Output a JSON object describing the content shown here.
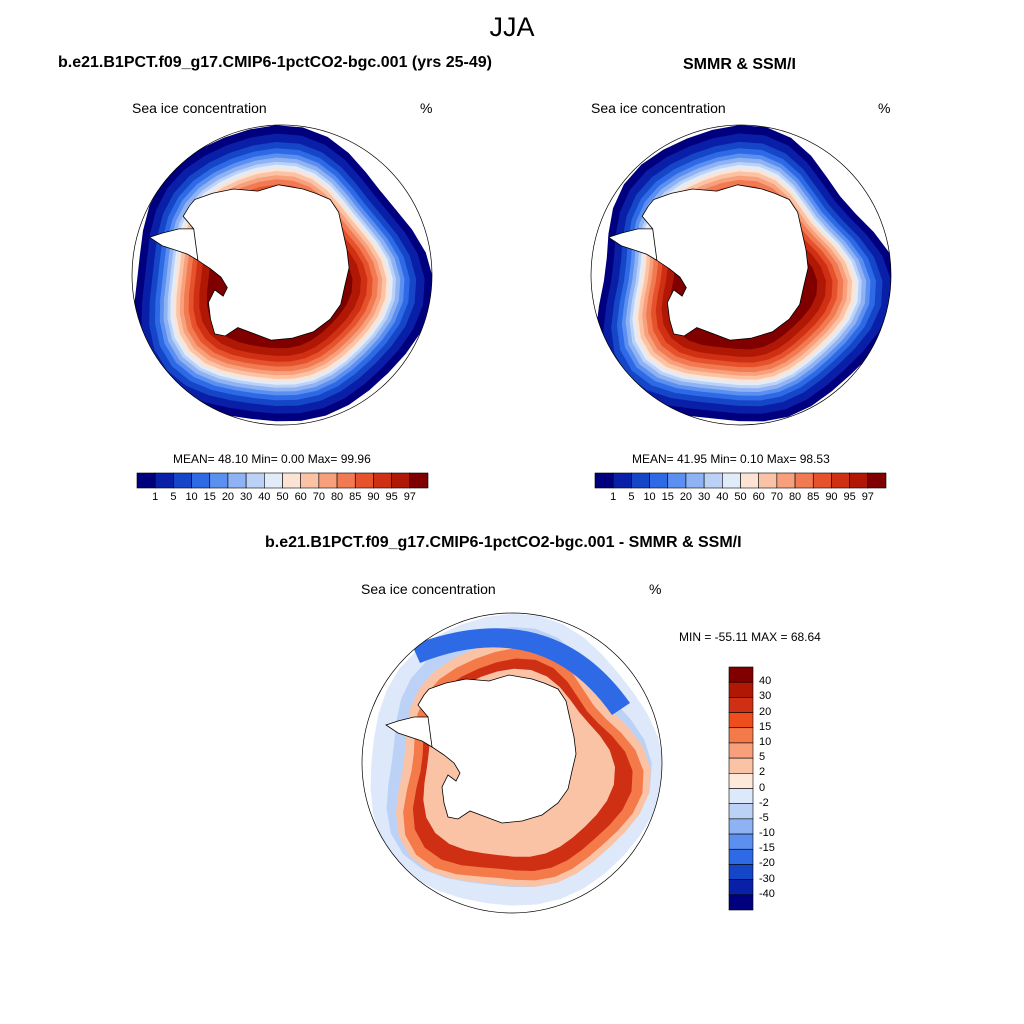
{
  "figure": {
    "season": "JJA",
    "panels": {
      "model": {
        "title": "b.e21.B1PCT.f09_g17.CMIP6-1pctCO2-bgc.001 (yrs 25-49)",
        "label": "Sea ice concentration",
        "units": "%",
        "stats": "MEAN=  48.10  Min=   0.00  Max=  99.96"
      },
      "obs": {
        "title": "SMMR & SSM/I",
        "label": "Sea ice concentration",
        "units": "%",
        "stats": "MEAN=  41.95  Min=   0.10  Max=  98.53"
      },
      "diff": {
        "title": "b.e21.B1PCT.f09_g17.CMIP6-1pctCO2-bgc.001 - SMMR & SSM/I",
        "label": "Sea ice concentration",
        "units": "%",
        "stats": "MIN = -55.11 MAX =  68.64"
      }
    }
  },
  "chart_data": [
    {
      "type": "heatmap",
      "title": "b.e21.B1PCT.f09_g17.CMIP6-1pctCO2-bgc.001 (yrs 25-49)",
      "variable": "Sea ice concentration",
      "units": "%",
      "mean": 48.1,
      "min": 0.0,
      "max": 99.96,
      "colorbar_levels": [
        "1",
        "5",
        "10",
        "15",
        "20",
        "30",
        "40",
        "50",
        "60",
        "70",
        "80",
        "85",
        "90",
        "95",
        "97"
      ],
      "colors": [
        "#00007f",
        "#0a1fa8",
        "#1646c8",
        "#2f6ae6",
        "#5b8ff0",
        "#8fb2f4",
        "#bcd1f6",
        "#e1ecfb",
        "#fde3d3",
        "#fbc3a6",
        "#f8a07c",
        "#f27a52",
        "#e5522c",
        "#cf3014",
        "#b01805",
        "#800000"
      ]
    },
    {
      "type": "heatmap",
      "title": "SMMR & SSM/I",
      "variable": "Sea ice concentration",
      "units": "%",
      "mean": 41.95,
      "min": 0.1,
      "max": 98.53,
      "colorbar_levels": [
        "1",
        "5",
        "10",
        "15",
        "20",
        "30",
        "40",
        "50",
        "60",
        "70",
        "80",
        "85",
        "90",
        "95",
        "97"
      ],
      "colors": [
        "#00007f",
        "#0a1fa8",
        "#1646c8",
        "#2f6ae6",
        "#5b8ff0",
        "#8fb2f4",
        "#bcd1f6",
        "#e1ecfb",
        "#fde3d3",
        "#fbc3a6",
        "#f8a07c",
        "#f27a52",
        "#e5522c",
        "#cf3014",
        "#b01805",
        "#800000"
      ]
    },
    {
      "type": "heatmap",
      "title": "b.e21.B1PCT.f09_g17.CMIP6-1pctCO2-bgc.001 - SMMR & SSM/I",
      "variable": "Sea ice concentration",
      "units": "%",
      "min": -55.11,
      "max": 68.64,
      "colorbar_levels": [
        "40",
        "30",
        "20",
        "15",
        "10",
        "5",
        "2",
        "0",
        "-2",
        "-5",
        "-10",
        "-15",
        "-20",
        "-30",
        "-40"
      ],
      "colors": [
        "#800000",
        "#b01805",
        "#cf3014",
        "#f04d1c",
        "#f47a4a",
        "#f8a07c",
        "#fbc3a6",
        "#fde8da",
        "#dde9fa",
        "#bcd1f6",
        "#8fb2f4",
        "#5b8ff0",
        "#2f6ae6",
        "#1646c8",
        "#0a1fa8",
        "#00007f"
      ]
    }
  ]
}
